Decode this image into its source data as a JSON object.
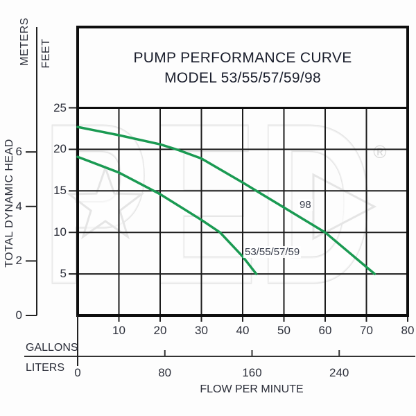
{
  "title": {
    "line1": "PUMP PERFORMANCE CURVE",
    "line2": "MODEL 53/55/57/59/98"
  },
  "y_axis": {
    "outer_unit": "METERS",
    "inner_unit": "FEET",
    "title": "TOTAL DYNAMIC HEAD",
    "meters_ticks": [
      0,
      2,
      4,
      6
    ],
    "feet_ticks": [
      5,
      10,
      15,
      20,
      25
    ]
  },
  "x_axis": {
    "primary_unit": "GALLONS",
    "secondary_unit": "LITERS",
    "title": "FLOW PER MINUTE",
    "gallons_ticks": [
      10,
      20,
      30,
      40,
      50,
      60,
      70,
      80
    ],
    "liters_ticks": [
      0,
      80,
      160,
      240
    ]
  },
  "watermark": {
    "text": "PED",
    "registered": "®"
  },
  "chart_data": {
    "type": "line",
    "title": "PUMP PERFORMANCE CURVE MODEL 53/55/57/59/98",
    "x_label": "FLOW PER MINUTE",
    "y_label": "TOTAL DYNAMIC HEAD",
    "x_units": [
      "GALLONS",
      "LITERS"
    ],
    "y_units": [
      "FEET",
      "METERS"
    ],
    "x_range_gallons": [
      0,
      80
    ],
    "y_range_feet": [
      0,
      25
    ],
    "grid": true,
    "line_color": "#1a9a52",
    "series": [
      {
        "name": "98",
        "points_gal_ft": [
          [
            0,
            22.7
          ],
          [
            10,
            21.7
          ],
          [
            20,
            20.6
          ],
          [
            24.5,
            19.9
          ],
          [
            30,
            18.9
          ],
          [
            40,
            16.0
          ],
          [
            50,
            13.0
          ],
          [
            60,
            10.0
          ],
          [
            72,
            5.0
          ]
        ]
      },
      {
        "name": "53/55/57/59",
        "points_gal_ft": [
          [
            0,
            19.1
          ],
          [
            10,
            17.2
          ],
          [
            20,
            14.6
          ],
          [
            30,
            11.5
          ],
          [
            34.5,
            10.0
          ],
          [
            40,
            7.1
          ],
          [
            43.3,
            5.0
          ]
        ]
      }
    ]
  }
}
